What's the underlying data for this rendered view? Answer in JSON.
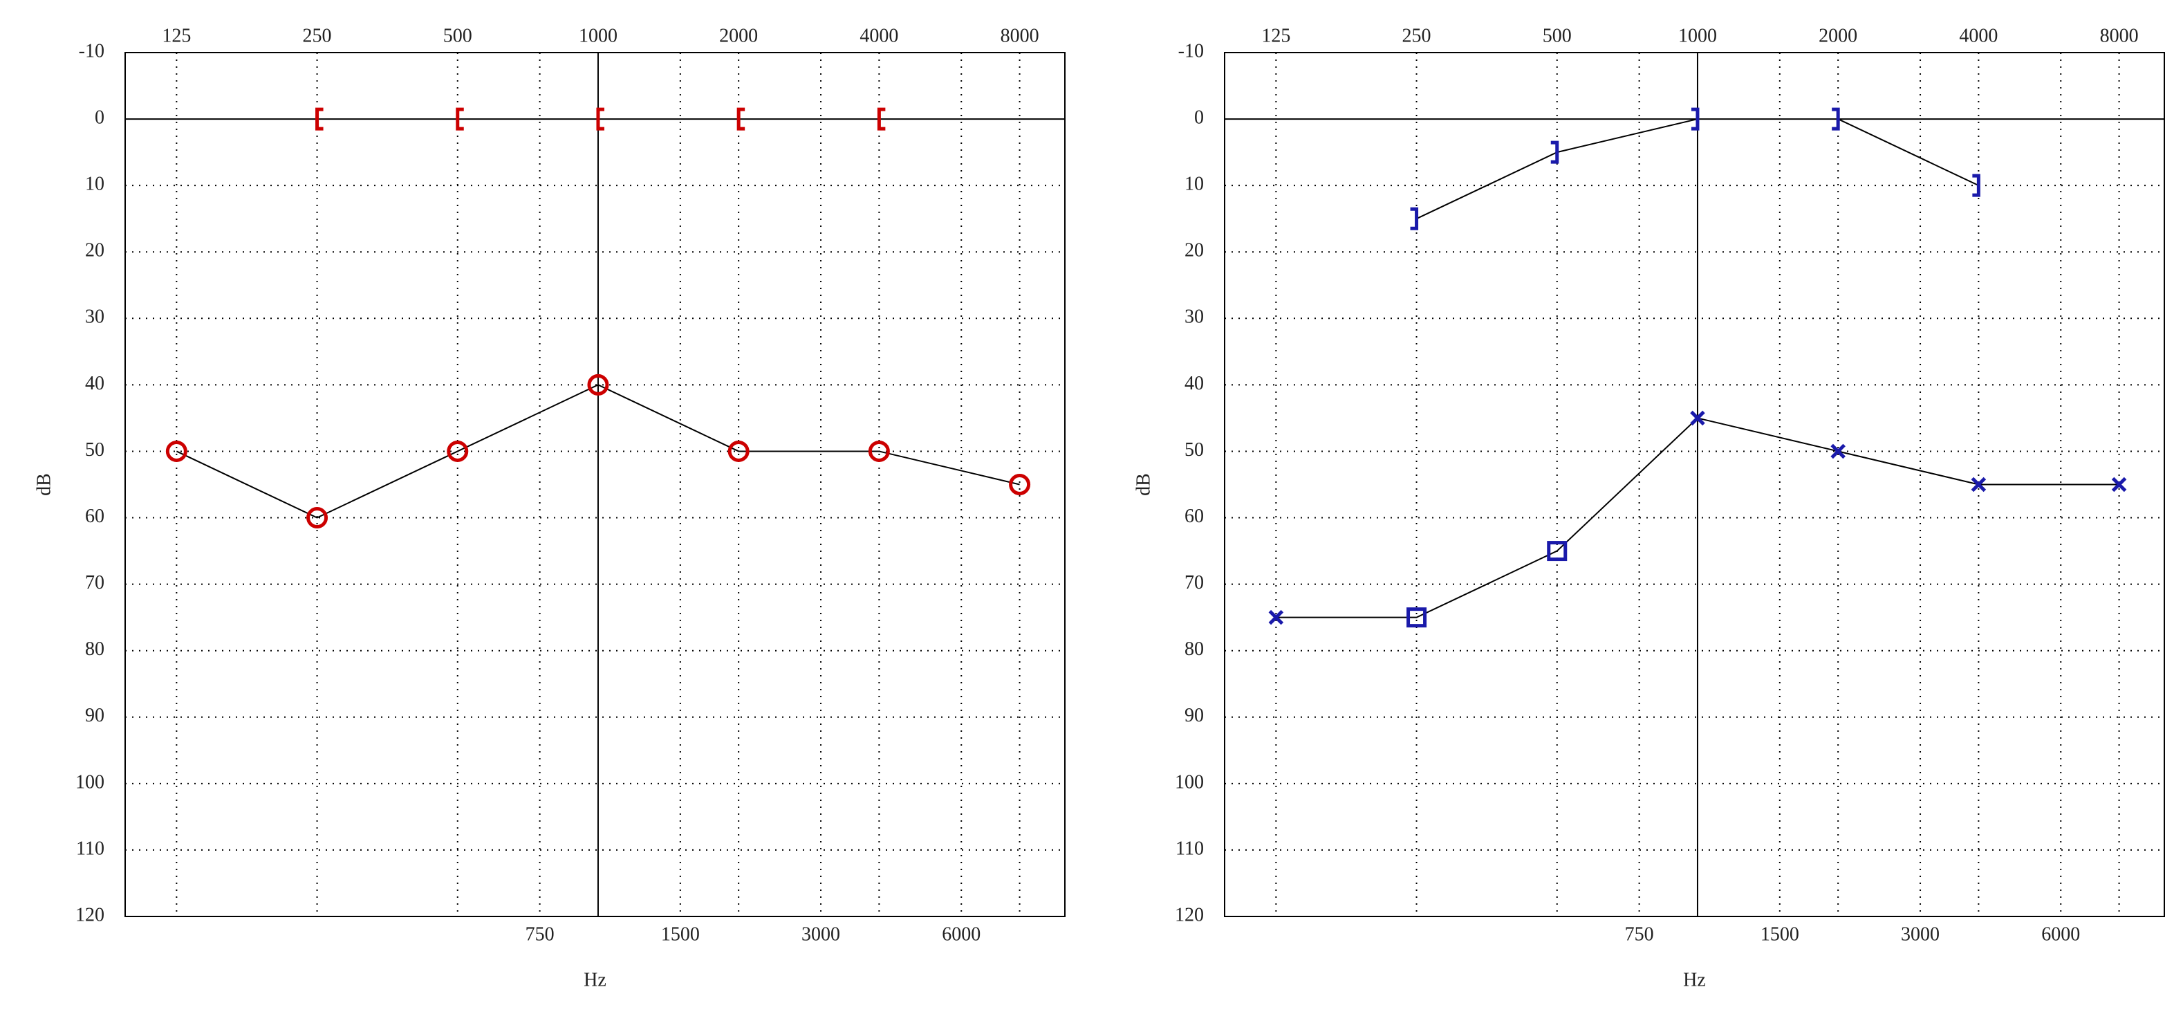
{
  "chart_data": [
    {
      "type": "line",
      "xscale": "log",
      "xlabel": "Hz",
      "ylabel": "dB",
      "xlim": [
        97,
        10000
      ],
      "ylim": [
        -10,
        120
      ],
      "yinvert": true,
      "grid": true,
      "xticks": [
        125,
        250,
        500,
        1000,
        2000,
        4000,
        8000
      ],
      "xticks_minor": [
        750,
        1500,
        3000,
        6000
      ],
      "yticks": [
        -10,
        0,
        10,
        20,
        30,
        40,
        50,
        60,
        70,
        80,
        90,
        100,
        110,
        120
      ],
      "xref": 1000,
      "yref": 0,
      "series": [
        {
          "color": "#cc0000",
          "marker": "circle",
          "line": true,
          "x": [
            125,
            250,
            500,
            1000,
            2000,
            4000,
            8000
          ],
          "values": [
            50,
            60,
            50,
            40,
            50,
            50,
            55
          ]
        },
        {
          "color": "#cc0000",
          "marker": "[",
          "line": false,
          "x": [
            250,
            500,
            1000,
            2000,
            4000
          ],
          "values": [
            0,
            0,
            0,
            0,
            0
          ]
        }
      ]
    },
    {
      "type": "line",
      "xscale": "log",
      "xlabel": "Hz",
      "ylabel": "dB",
      "xlim": [
        97,
        10000
      ],
      "ylim": [
        -10,
        120
      ],
      "yinvert": true,
      "grid": true,
      "xticks": [
        125,
        250,
        500,
        1000,
        2000,
        4000,
        8000
      ],
      "xticks_minor": [
        750,
        1500,
        3000,
        6000
      ],
      "yticks": [
        -10,
        0,
        10,
        20,
        30,
        40,
        50,
        60,
        70,
        80,
        90,
        100,
        110,
        120
      ],
      "xref": 1000,
      "yref": 0,
      "series": [
        {
          "color": "#1a1aaa",
          "markers": [
            "x",
            "square",
            "square",
            "x",
            "x",
            "x",
            "x"
          ],
          "line": true,
          "x": [
            125,
            250,
            500,
            1000,
            2000,
            4000,
            8000
          ],
          "values": [
            75,
            75,
            65,
            45,
            50,
            55,
            55
          ]
        },
        {
          "color": "#1a1aaa",
          "marker": "]",
          "line": true,
          "x": [
            250,
            500,
            1000
          ],
          "values": [
            15,
            5,
            0
          ]
        },
        {
          "color": "#1a1aaa",
          "marker": "]",
          "line": true,
          "x": [
            2000,
            4000
          ],
          "values": [
            0,
            10
          ]
        }
      ]
    }
  ]
}
